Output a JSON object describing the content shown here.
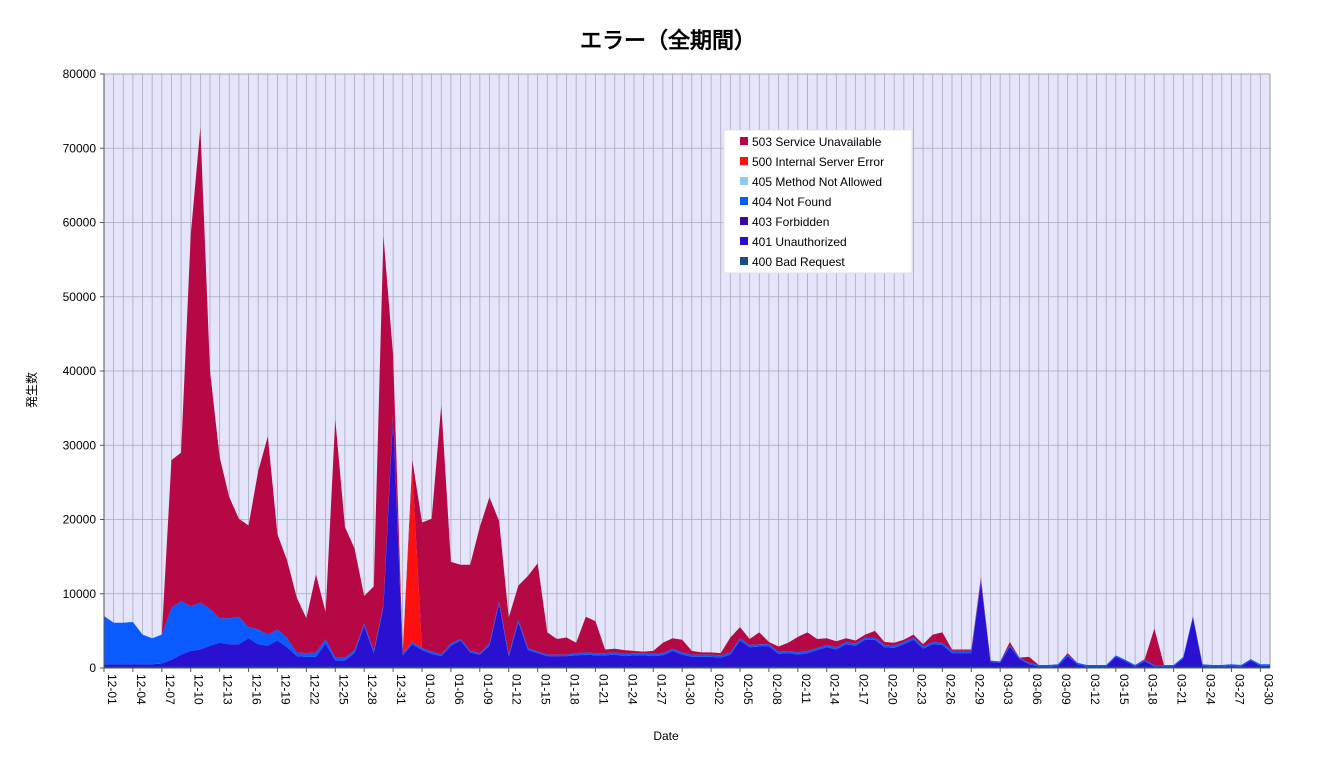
{
  "chart_data": {
    "type": "area",
    "title": "エラー（全期間）",
    "xlabel": "Date",
    "ylabel": "発生数",
    "ylim": [
      0,
      80000
    ],
    "yticks": [
      0,
      10000,
      20000,
      30000,
      40000,
      50000,
      60000,
      70000,
      80000
    ],
    "grid": true,
    "legend_position": "top-right",
    "stacked": true,
    "x": [
      "12-01",
      "12-02",
      "12-03",
      "12-04",
      "12-05",
      "12-06",
      "12-07",
      "12-08",
      "12-09",
      "12-10",
      "12-11",
      "12-12",
      "12-13",
      "12-14",
      "12-15",
      "12-16",
      "12-17",
      "12-18",
      "12-19",
      "12-20",
      "12-21",
      "12-22",
      "12-23",
      "12-24",
      "12-25",
      "12-26",
      "12-27",
      "12-28",
      "12-29",
      "12-30",
      "12-31",
      "01-01",
      "01-02",
      "01-03",
      "01-04",
      "01-05",
      "01-06",
      "01-07",
      "01-08",
      "01-09",
      "01-10",
      "01-11",
      "01-12",
      "01-13",
      "01-14",
      "01-15",
      "01-16",
      "01-17",
      "01-18",
      "01-19",
      "01-20",
      "01-21",
      "01-22",
      "01-23",
      "01-24",
      "01-25",
      "01-26",
      "01-27",
      "01-28",
      "01-29",
      "01-30",
      "01-31",
      "02-01",
      "02-02",
      "02-03",
      "02-04",
      "02-05",
      "02-06",
      "02-07",
      "02-08",
      "02-09",
      "02-10",
      "02-11",
      "02-12",
      "02-13",
      "02-14",
      "02-15",
      "02-16",
      "02-17",
      "02-18",
      "02-19",
      "02-20",
      "02-21",
      "02-22",
      "02-23",
      "02-24",
      "02-25",
      "02-26",
      "02-27",
      "02-28",
      "02-29",
      "03-01",
      "03-02",
      "03-03",
      "03-04",
      "03-05",
      "03-06",
      "03-07",
      "03-08",
      "03-09",
      "03-10",
      "03-11",
      "03-12",
      "03-13",
      "03-14",
      "03-15",
      "03-16",
      "03-17",
      "03-18",
      "03-19",
      "03-20",
      "03-21",
      "03-22",
      "03-23",
      "03-24",
      "03-25",
      "03-26",
      "03-27",
      "03-28",
      "03-29",
      "03-30",
      "03-31"
    ],
    "xtick_labels": [
      "12-01",
      "12-04",
      "12-07",
      "12-10",
      "12-13",
      "12-16",
      "12-19",
      "12-22",
      "12-25",
      "12-28",
      "12-31",
      "01-03",
      "01-06",
      "01-09",
      "01-12",
      "01-15",
      "01-18",
      "01-21",
      "01-24",
      "01-27",
      "01-30",
      "02-02",
      "02-05",
      "02-08",
      "02-11",
      "02-14",
      "02-17",
      "02-20",
      "02-23",
      "02-26",
      "02-29",
      "03-03",
      "03-06",
      "03-09",
      "03-12",
      "03-15",
      "03-18",
      "03-21",
      "03-24",
      "03-27",
      "03-30"
    ],
    "series": [
      {
        "name": "400 Bad Request",
        "color": "#1a4a8a",
        "values": [
          200,
          200,
          200,
          200,
          200,
          200,
          200,
          200,
          200,
          200,
          200,
          200,
          200,
          200,
          200,
          200,
          200,
          200,
          200,
          200,
          200,
          200,
          200,
          200,
          200,
          200,
          200,
          200,
          200,
          200,
          200,
          200,
          200,
          200,
          200,
          200,
          200,
          200,
          200,
          200,
          200,
          200,
          200,
          200,
          200,
          200,
          200,
          200,
          200,
          200,
          200,
          200,
          200,
          200,
          200,
          200,
          200,
          200,
          200,
          200,
          200,
          200,
          200,
          200,
          200,
          200,
          200,
          200,
          200,
          200,
          200,
          200,
          200,
          200,
          200,
          200,
          200,
          200,
          200,
          200,
          200,
          200,
          200,
          200,
          200,
          200,
          200,
          200,
          200,
          200,
          200,
          200,
          200,
          200,
          200,
          200,
          200,
          200,
          200,
          200,
          200,
          200,
          200,
          200,
          200,
          200,
          200,
          200,
          200,
          200,
          200,
          200,
          200,
          200,
          200,
          200,
          200,
          200,
          200,
          200,
          200,
          200
        ]
      },
      {
        "name": "401 Unauthorized",
        "color": "#2a10d0",
        "values": [
          300,
          300,
          300,
          300,
          300,
          300,
          400,
          900,
          1600,
          2100,
          2300,
          2800,
          3200,
          3000,
          3000,
          3800,
          3000,
          2800,
          3500,
          2600,
          1400,
          1300,
          1300,
          3100,
          800,
          800,
          1800,
          5500,
          1800,
          8000,
          33800,
          1500,
          3000,
          2200,
          1700,
          1400,
          2800,
          3500,
          1900,
          1600,
          2800,
          8500,
          1300,
          6000,
          2200,
          1800,
          1400,
          1400,
          1400,
          1500,
          1600,
          1500,
          1500,
          1600,
          1400,
          1500,
          1500,
          1400,
          1500,
          2100,
          1600,
          1300,
          1300,
          1300,
          1200,
          1600,
          3500,
          2600,
          2700,
          2700,
          1700,
          1800,
          1600,
          1800,
          2200,
          2600,
          2300,
          3000,
          2800,
          3600,
          3600,
          2600,
          2500,
          3000,
          3600,
          2400,
          3000,
          2900,
          1800,
          1800,
          1800,
          11400,
          600,
          500,
          2700,
          1000,
          300,
          0,
          0,
          100,
          1400,
          300,
          0,
          0,
          0,
          1300,
          700,
          0,
          700,
          0,
          0,
          0,
          1100,
          6600,
          100,
          0,
          0,
          100,
          0,
          800,
          100,
          100
        ]
      },
      {
        "name": "403 Forbidden",
        "color": "#3a0aa0",
        "values": [
          0,
          0,
          0,
          0,
          0,
          0,
          0,
          0,
          0,
          0,
          0,
          0,
          0,
          0,
          0,
          0,
          0,
          0,
          0,
          0,
          0,
          0,
          0,
          0,
          0,
          0,
          0,
          0,
          0,
          0,
          0,
          0,
          0,
          0,
          0,
          0,
          0,
          0,
          0,
          0,
          0,
          0,
          0,
          0,
          0,
          0,
          0,
          0,
          0,
          0,
          0,
          0,
          0,
          0,
          0,
          0,
          0,
          0,
          0,
          0,
          0,
          0,
          0,
          0,
          0,
          0,
          0,
          0,
          0,
          0,
          0,
          0,
          0,
          0,
          0,
          0,
          0,
          0,
          0,
          0,
          0,
          0,
          0,
          0,
          0,
          0,
          0,
          0,
          0,
          0,
          0,
          0,
          0,
          0,
          0,
          0,
          0,
          0,
          0,
          0,
          0,
          0,
          0,
          0,
          0,
          0,
          0,
          0,
          0,
          0,
          0,
          0,
          0,
          0,
          0,
          0,
          0,
          0,
          0,
          0,
          0,
          0
        ]
      },
      {
        "name": "404 Not Found",
        "color": "#0a5aff",
        "values": [
          6500,
          5600,
          5600,
          5700,
          4000,
          3500,
          3900,
          7000,
          7200,
          6000,
          6300,
          5000,
          3300,
          3500,
          3700,
          1500,
          2000,
          1500,
          1500,
          1200,
          500,
          500,
          600,
          600,
          400,
          400,
          400,
          300,
          300,
          300,
          300,
          300,
          300,
          300,
          300,
          200,
          300,
          200,
          200,
          200,
          300,
          300,
          300,
          300,
          300,
          200,
          200,
          200,
          200,
          300,
          300,
          300,
          300,
          300,
          300,
          300,
          300,
          300,
          300,
          300,
          300,
          300,
          300,
          300,
          300,
          300,
          300,
          300,
          300,
          300,
          300,
          300,
          300,
          300,
          300,
          300,
          300,
          300,
          300,
          300,
          300,
          300,
          300,
          300,
          300,
          300,
          300,
          300,
          300,
          300,
          300,
          200,
          200,
          200,
          200,
          200,
          200,
          200,
          200,
          200,
          200,
          200,
          200,
          200,
          200,
          200,
          200,
          200,
          200,
          200,
          200,
          200,
          200,
          200,
          200,
          200,
          200,
          200,
          200,
          200,
          200,
          200
        ]
      },
      {
        "name": "405 Method Not Allowed",
        "color": "#8ec8f0",
        "values": [
          0,
          0,
          0,
          0,
          0,
          0,
          0,
          0,
          0,
          0,
          0,
          0,
          0,
          0,
          0,
          0,
          0,
          0,
          0,
          0,
          0,
          0,
          0,
          0,
          0,
          0,
          0,
          0,
          0,
          0,
          0,
          0,
          0,
          0,
          0,
          0,
          0,
          0,
          0,
          0,
          0,
          0,
          0,
          0,
          0,
          0,
          0,
          0,
          0,
          0,
          0,
          0,
          0,
          0,
          0,
          0,
          0,
          0,
          0,
          0,
          0,
          0,
          0,
          0,
          0,
          0,
          0,
          0,
          0,
          0,
          0,
          0,
          0,
          0,
          0,
          0,
          0,
          0,
          0,
          0,
          0,
          0,
          0,
          0,
          0,
          0,
          0,
          0,
          0,
          0,
          0,
          0,
          0,
          0,
          0,
          0,
          0,
          0,
          0,
          0,
          0,
          0,
          0,
          0,
          0,
          0,
          0,
          0,
          0,
          0,
          0,
          0,
          0,
          0,
          0,
          0,
          0,
          0,
          0,
          0,
          0,
          0
        ]
      },
      {
        "name": "500 Internal Server Error",
        "color": "#ff1010",
        "values": [
          0,
          0,
          0,
          0,
          0,
          0,
          0,
          0,
          0,
          0,
          0,
          0,
          0,
          0,
          0,
          0,
          0,
          0,
          0,
          0,
          0,
          0,
          0,
          0,
          0,
          0,
          0,
          0,
          0,
          0,
          0,
          0,
          23000,
          0,
          0,
          0,
          0,
          0,
          0,
          0,
          0,
          0,
          0,
          0,
          0,
          0,
          0,
          0,
          0,
          0,
          0,
          0,
          0,
          0,
          0,
          0,
          0,
          0,
          0,
          0,
          0,
          0,
          0,
          0,
          0,
          0,
          0,
          0,
          0,
          0,
          0,
          0,
          0,
          0,
          0,
          0,
          0,
          0,
          0,
          0,
          0,
          0,
          0,
          0,
          0,
          0,
          0,
          0,
          0,
          0,
          0,
          0,
          0,
          0,
          0,
          0,
          0,
          0,
          0,
          0,
          0,
          0,
          0,
          0,
          0,
          0,
          0,
          0,
          0,
          0,
          0,
          0,
          0,
          0,
          0,
          0,
          0,
          0,
          0,
          0,
          0,
          0
        ]
      },
      {
        "name": "503 Service Unavailable",
        "color": "#b50845",
        "values": [
          0,
          0,
          0,
          0,
          0,
          0,
          0,
          19900,
          20000,
          50000,
          64000,
          32000,
          21700,
          16300,
          13200,
          13700,
          21300,
          26700,
          12800,
          10500,
          7400,
          4700,
          10500,
          3600,
          32100,
          17600,
          13700,
          3700,
          8700,
          49700,
          7800,
          200,
          1500,
          16900,
          17900,
          33600,
          11000,
          10000,
          11600,
          17000,
          19700,
          10800,
          5000,
          4600,
          9700,
          11900,
          3000,
          2100,
          2300,
          1400,
          4800,
          4300,
          500,
          500,
          500,
          300,
          200,
          400,
          1400,
          1400,
          1700,
          500,
          300,
          300,
          300,
          2000,
          1500,
          800,
          1600,
          300,
          700,
          1100,
          2100,
          2500,
          1200,
          900,
          800,
          500,
          400,
          400,
          900,
          400,
          400,
          300,
          400,
          300,
          1000,
          1400,
          200,
          200,
          200,
          400,
          0,
          0,
          400,
          0,
          800,
          0,
          0,
          0,
          200,
          0,
          0,
          0,
          0,
          0,
          0,
          0,
          100,
          4900,
          0,
          0,
          0,
          0,
          0,
          0,
          0,
          0,
          0,
          0,
          0,
          0
        ]
      }
    ]
  }
}
